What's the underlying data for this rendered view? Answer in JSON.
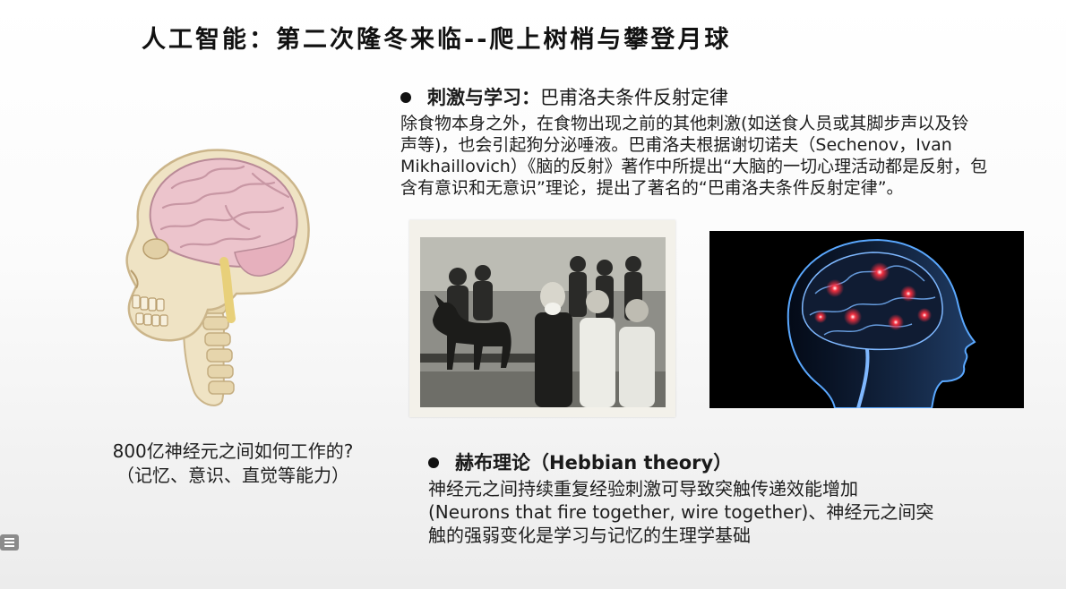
{
  "title": "人工智能：第二次隆冬来临--爬上树梢与攀登月球",
  "pavlov": {
    "heading_bold": "刺激与学习：",
    "heading_rest": "巴甫洛夫条件反射定律",
    "lines": [
      "除食物本身之外，在食物出现之前的其他刺激(如送食人员或其脚步声以及铃",
      "声等)，也会引起狗分泌唾液。巴甫洛夫根据谢切诺夫（Sechenov，Ivan",
      "Mikhaillovich）《脑的反射》著作中所提出“大脑的一切心理活动都是反射，包",
      "含有意识和无意识”理论，提出了著名的“巴甫洛夫条件反射定律”。"
    ]
  },
  "question": {
    "line1": "800亿神经元之间如何工作的?",
    "line2": "（记忆、意识、直觉等能力）"
  },
  "hebb": {
    "heading": "赫布理论（Hebbian theory）",
    "lines": [
      "神经元之间持续重复经验刺激可导致突触传递效能增加",
      "(Neurons that fire together, wire together)、神经元之间突",
      "触的强弱变化是学习与记忆的生理学基础"
    ]
  },
  "icons": {
    "skull": "skull-brain-spine-illustration",
    "pavlov_photo": "pavlov-laboratory-photo",
    "brain_photo": "glowing-brain-head-photo",
    "side": "list-menu-icon"
  },
  "colors": {
    "brain_pink": "#ecc4cc",
    "bone": "#efe3c4",
    "bone_outline": "#cbb58a",
    "glow_red": "#ff3040",
    "head_blue": "#5aa8ff"
  }
}
